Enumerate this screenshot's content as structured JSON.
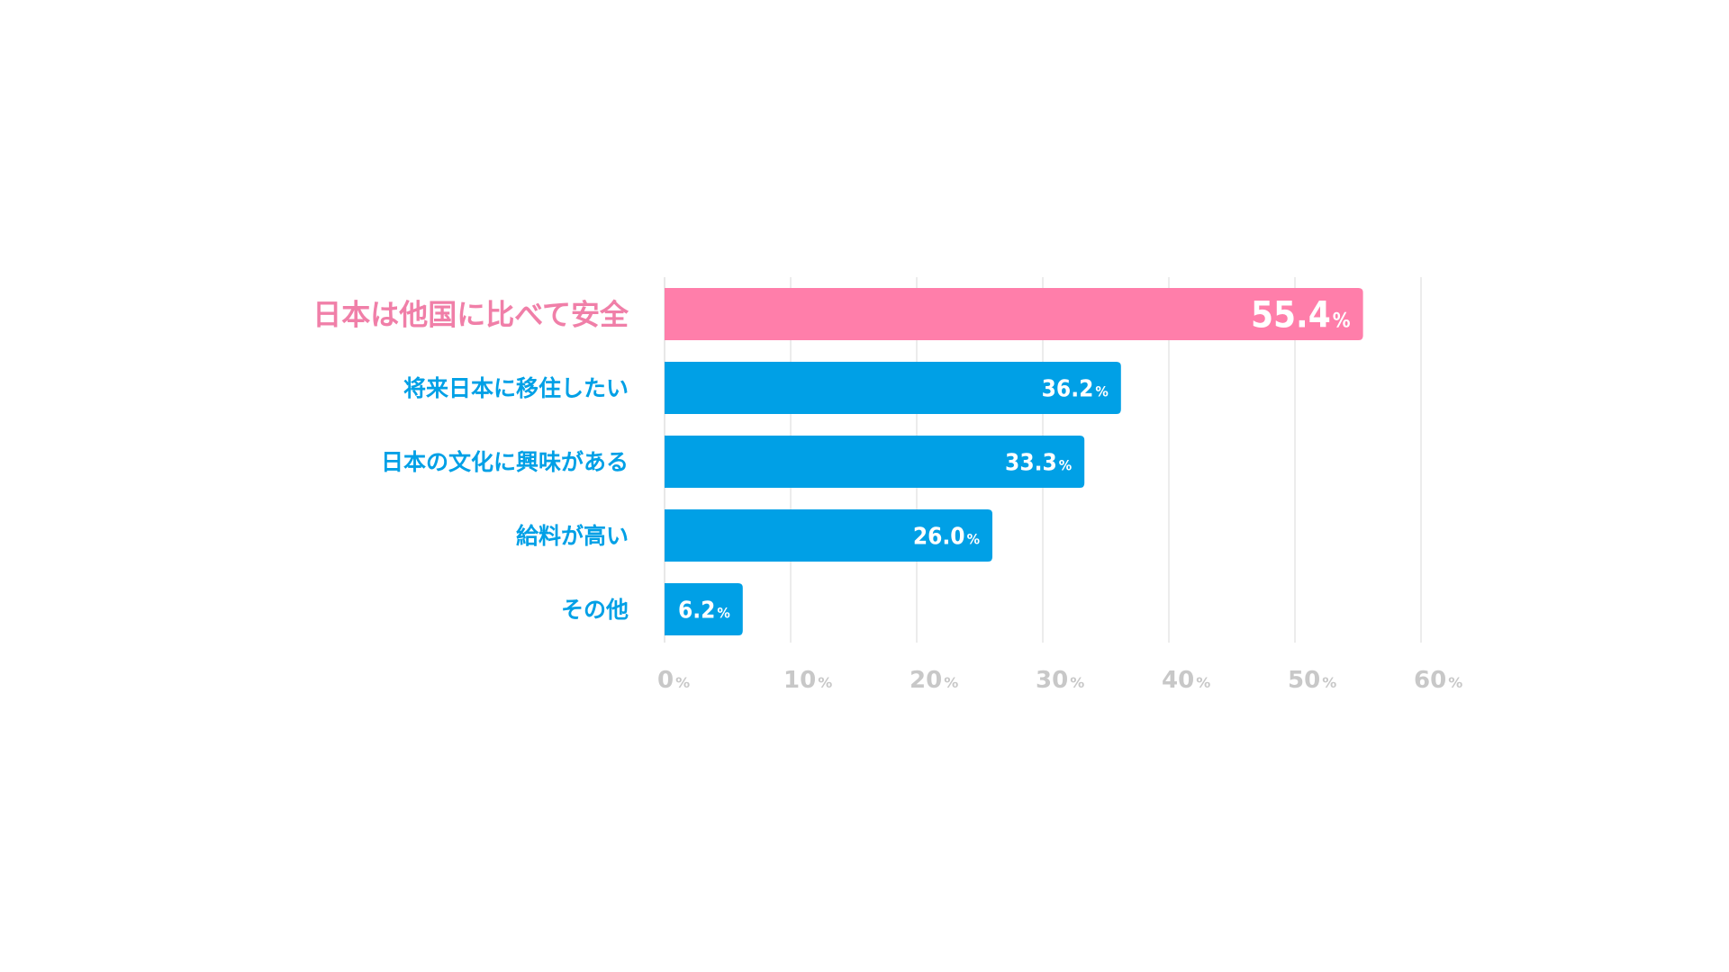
{
  "chart_data": {
    "type": "bar",
    "orientation": "horizontal",
    "categories": [
      "日本は他国に比べて安全",
      "将来日本に移住したい",
      "日本の文化に興味がある",
      "給料が高い",
      "その他"
    ],
    "values": [
      55.4,
      36.2,
      33.3,
      26.0,
      6.2
    ],
    "highlight_index": 0,
    "unit": "%",
    "value_labels": [
      "55.4",
      "36.2",
      "33.3",
      "26.0",
      "6.2"
    ],
    "xlim": [
      0,
      60
    ],
    "xticks": [
      0,
      10,
      20,
      30,
      40,
      50,
      60
    ],
    "xtick_labels": [
      "0",
      "10",
      "20",
      "30",
      "40",
      "50",
      "60"
    ],
    "grid": true,
    "title": "",
    "xlabel": "",
    "ylabel": "",
    "colors": {
      "bar": "#00a0e6",
      "highlight_bar": "#ff7eaa",
      "label": "#00a0e6",
      "highlight_label": "#f07fa8",
      "grid": "#e0e0e0",
      "tick": "#c8c8c8"
    }
  }
}
